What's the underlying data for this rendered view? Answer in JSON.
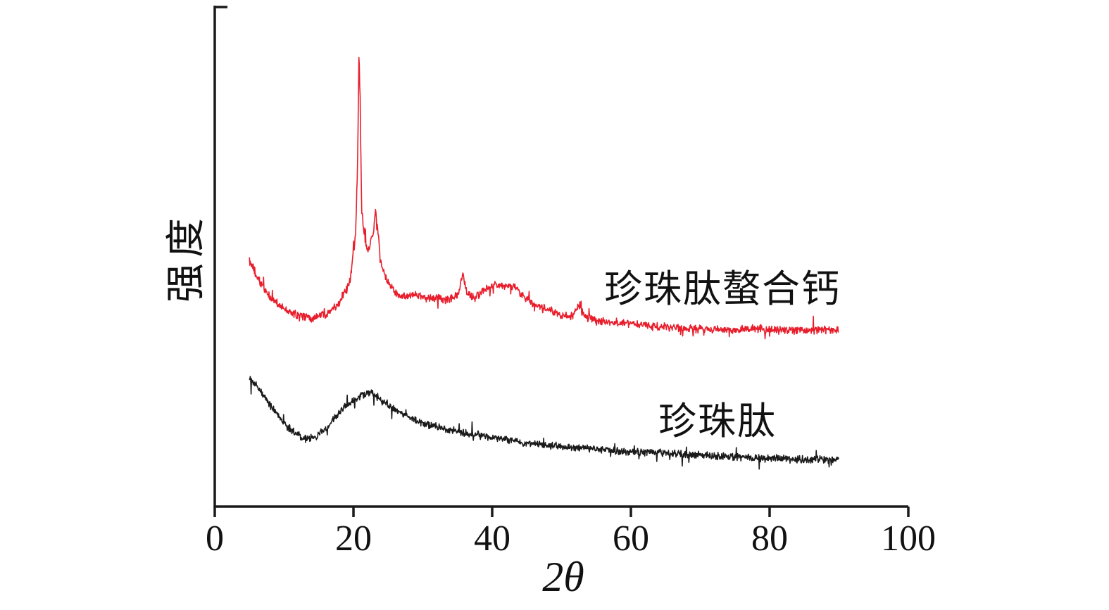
{
  "figure": {
    "background": "#ffffff",
    "text_color": "#111111"
  },
  "chart_data": {
    "type": "line",
    "title": "",
    "xlabel": "2θ",
    "ylabel": "强度",
    "xlim": [
      0,
      100
    ],
    "ylim": [
      0,
      1
    ],
    "x_ticks": [
      0,
      20,
      40,
      60,
      80,
      100
    ],
    "x_tick_labels": [
      "0",
      "20",
      "40",
      "60",
      "80",
      "100"
    ],
    "y_tick_labels": [],
    "grid": false,
    "legend_position": "inline-right-of-curves",
    "axis_color": "#1a1a1a",
    "series": [
      {
        "name": "珍珠肽螯合钙",
        "color": "#e81e2c",
        "noise": 0.01,
        "points": [
          [
            5,
            0.5
          ],
          [
            6.5,
            0.455
          ],
          [
            8,
            0.425
          ],
          [
            10,
            0.4
          ],
          [
            12,
            0.388
          ],
          [
            14,
            0.383
          ],
          [
            16,
            0.392
          ],
          [
            18,
            0.415
          ],
          [
            19.5,
            0.46
          ],
          [
            20.3,
            0.55
          ],
          [
            20.6,
            0.7
          ],
          [
            20.8,
            0.93
          ],
          [
            21.0,
            0.78
          ],
          [
            21.2,
            0.6
          ],
          [
            21.6,
            0.54
          ],
          [
            22.2,
            0.52
          ],
          [
            22.8,
            0.55
          ],
          [
            23.2,
            0.6
          ],
          [
            23.5,
            0.56
          ],
          [
            24,
            0.49
          ],
          [
            25,
            0.455
          ],
          [
            26,
            0.435
          ],
          [
            27.5,
            0.425
          ],
          [
            29,
            0.43
          ],
          [
            30.5,
            0.42
          ],
          [
            32,
            0.425
          ],
          [
            33.5,
            0.42
          ],
          [
            35,
            0.43
          ],
          [
            35.8,
            0.47
          ],
          [
            36.4,
            0.43
          ],
          [
            37.5,
            0.425
          ],
          [
            38.5,
            0.435
          ],
          [
            39.5,
            0.445
          ],
          [
            40.5,
            0.45
          ],
          [
            41.5,
            0.445
          ],
          [
            42.5,
            0.45
          ],
          [
            43.5,
            0.445
          ],
          [
            44.5,
            0.425
          ],
          [
            46,
            0.41
          ],
          [
            48,
            0.4
          ],
          [
            50,
            0.39
          ],
          [
            51.5,
            0.385
          ],
          [
            52.6,
            0.41
          ],
          [
            53.2,
            0.385
          ],
          [
            55,
            0.378
          ],
          [
            57,
            0.374
          ],
          [
            60,
            0.372
          ],
          [
            63,
            0.366
          ],
          [
            66,
            0.363
          ],
          [
            70,
            0.361
          ],
          [
            74,
            0.359
          ],
          [
            78,
            0.361
          ],
          [
            82,
            0.358
          ],
          [
            86,
            0.359
          ],
          [
            90,
            0.36
          ]
        ]
      },
      {
        "name": "珍珠肽",
        "color": "#1a1a1a",
        "noise": 0.009,
        "points": [
          [
            5,
            0.26
          ],
          [
            6,
            0.245
          ],
          [
            7,
            0.225
          ],
          [
            8.5,
            0.195
          ],
          [
            10,
            0.168
          ],
          [
            11.5,
            0.15
          ],
          [
            13,
            0.138
          ],
          [
            14.5,
            0.14
          ],
          [
            16,
            0.158
          ],
          [
            17.5,
            0.183
          ],
          [
            19,
            0.205
          ],
          [
            20.5,
            0.22
          ],
          [
            21.5,
            0.228
          ],
          [
            22.5,
            0.23
          ],
          [
            23.5,
            0.222
          ],
          [
            25,
            0.205
          ],
          [
            26.5,
            0.193
          ],
          [
            28,
            0.182
          ],
          [
            30,
            0.17
          ],
          [
            32,
            0.162
          ],
          [
            34,
            0.155
          ],
          [
            36,
            0.15
          ],
          [
            38,
            0.145
          ],
          [
            40,
            0.14
          ],
          [
            43,
            0.133
          ],
          [
            46,
            0.128
          ],
          [
            49,
            0.123
          ],
          [
            52,
            0.119
          ],
          [
            55,
            0.116
          ],
          [
            58,
            0.113
          ],
          [
            61,
            0.111
          ],
          [
            64,
            0.109
          ],
          [
            67,
            0.107
          ],
          [
            70,
            0.104
          ],
          [
            73,
            0.102
          ],
          [
            76,
            0.1
          ],
          [
            79,
            0.098
          ],
          [
            82,
            0.097
          ],
          [
            85,
            0.096
          ],
          [
            88,
            0.096
          ],
          [
            90,
            0.095
          ]
        ]
      }
    ]
  }
}
